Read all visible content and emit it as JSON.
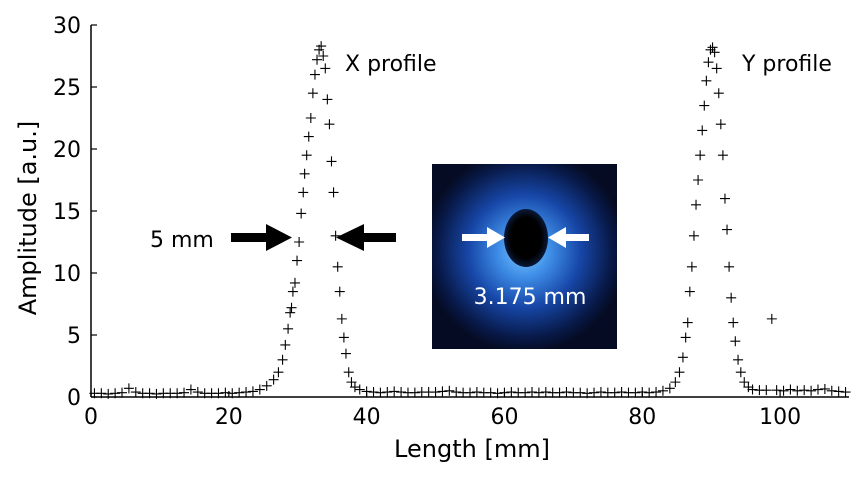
{
  "chart_data": {
    "type": "scatter",
    "xlabel": "Length [mm]",
    "ylabel": "Amplitude [a.u.]",
    "xlim": [
      0,
      110
    ],
    "ylim": [
      0,
      30
    ],
    "xticks": [
      0,
      20,
      40,
      60,
      80,
      100
    ],
    "yticks": [
      0,
      5,
      10,
      15,
      20,
      25,
      30
    ],
    "grid": false,
    "marker": "plus",
    "annotations": {
      "x_profile": "X profile",
      "y_profile": "Y profile",
      "width_label": "5 mm",
      "inset_label": "3.175 mm"
    },
    "series": [
      {
        "points": [
          [
            0.5,
            0.3
          ],
          [
            1.5,
            0.3
          ],
          [
            2.5,
            0.25
          ],
          [
            3.5,
            0.3
          ],
          [
            4.5,
            0.35
          ],
          [
            5.5,
            0.7
          ],
          [
            6.5,
            0.4
          ],
          [
            7.5,
            0.3
          ],
          [
            8.5,
            0.3
          ],
          [
            9.5,
            0.25
          ],
          [
            10.5,
            0.3
          ],
          [
            11.5,
            0.3
          ],
          [
            12.5,
            0.3
          ],
          [
            13.5,
            0.35
          ],
          [
            14.5,
            0.6
          ],
          [
            15.5,
            0.4
          ],
          [
            16.5,
            0.3
          ],
          [
            17.5,
            0.3
          ],
          [
            18.5,
            0.3
          ],
          [
            19.5,
            0.35
          ],
          [
            20.5,
            0.3
          ],
          [
            21.5,
            0.35
          ],
          [
            22.5,
            0.4
          ],
          [
            23.5,
            0.45
          ],
          [
            24.5,
            0.6
          ],
          [
            25.5,
            0.9
          ],
          [
            26.5,
            1.4
          ],
          [
            27.2,
            2.0
          ],
          [
            27.8,
            3.0
          ],
          [
            28.2,
            4.2
          ],
          [
            28.6,
            5.5
          ],
          [
            28.9,
            6.8
          ],
          [
            29.1,
            7.2
          ],
          [
            29.3,
            8.5
          ],
          [
            29.6,
            9.2
          ],
          [
            29.9,
            11.0
          ],
          [
            30.2,
            12.5
          ],
          [
            30.5,
            14.8
          ],
          [
            30.8,
            16.5
          ],
          [
            31.0,
            18.0
          ],
          [
            31.3,
            19.5
          ],
          [
            31.6,
            21.0
          ],
          [
            31.9,
            22.5
          ],
          [
            32.2,
            24.5
          ],
          [
            32.5,
            26.0
          ],
          [
            32.8,
            27.2
          ],
          [
            33.1,
            28.0
          ],
          [
            33.4,
            28.3
          ],
          [
            33.7,
            27.5
          ],
          [
            34.0,
            26.5
          ],
          [
            34.3,
            24.0
          ],
          [
            34.6,
            22.0
          ],
          [
            34.9,
            19.0
          ],
          [
            35.2,
            16.5
          ],
          [
            35.5,
            13.0
          ],
          [
            35.8,
            10.5
          ],
          [
            36.1,
            8.5
          ],
          [
            36.4,
            6.3
          ],
          [
            36.7,
            4.8
          ],
          [
            37.0,
            3.5
          ],
          [
            37.4,
            2.0
          ],
          [
            37.8,
            1.2
          ],
          [
            38.3,
            0.8
          ],
          [
            39,
            0.6
          ],
          [
            40,
            0.45
          ],
          [
            41,
            0.4
          ],
          [
            42,
            0.35
          ],
          [
            43,
            0.4
          ],
          [
            44,
            0.45
          ],
          [
            45,
            0.4
          ],
          [
            46,
            0.35
          ],
          [
            47,
            0.35
          ],
          [
            48,
            0.4
          ],
          [
            49,
            0.4
          ],
          [
            50,
            0.4
          ],
          [
            51,
            0.45
          ],
          [
            52,
            0.5
          ],
          [
            53,
            0.4
          ],
          [
            54,
            0.35
          ],
          [
            55,
            0.35
          ],
          [
            56,
            0.4
          ],
          [
            57,
            0.35
          ],
          [
            58,
            0.35
          ],
          [
            59,
            0.3
          ],
          [
            60,
            0.35
          ],
          [
            61,
            0.4
          ],
          [
            62,
            0.35
          ],
          [
            63,
            0.35
          ],
          [
            64,
            0.4
          ],
          [
            65,
            0.35
          ],
          [
            66,
            0.4
          ],
          [
            67,
            0.35
          ],
          [
            68,
            0.35
          ],
          [
            69,
            0.4
          ],
          [
            70,
            0.35
          ],
          [
            71,
            0.35
          ],
          [
            72,
            0.3
          ],
          [
            73,
            0.35
          ],
          [
            74,
            0.4
          ],
          [
            75,
            0.35
          ],
          [
            76,
            0.35
          ],
          [
            77,
            0.4
          ],
          [
            78,
            0.35
          ],
          [
            79,
            0.35
          ],
          [
            80,
            0.4
          ],
          [
            81,
            0.35
          ],
          [
            82,
            0.4
          ],
          [
            83,
            0.5
          ],
          [
            84,
            0.7
          ],
          [
            84.8,
            1.2
          ],
          [
            85.4,
            2.0
          ],
          [
            85.9,
            3.2
          ],
          [
            86.3,
            4.8
          ],
          [
            86.6,
            6.0
          ],
          [
            86.9,
            8.5
          ],
          [
            87.2,
            10.5
          ],
          [
            87.5,
            13.0
          ],
          [
            87.8,
            15.5
          ],
          [
            88.1,
            17.5
          ],
          [
            88.4,
            19.5
          ],
          [
            88.7,
            21.5
          ],
          [
            89.0,
            23.5
          ],
          [
            89.3,
            25.5
          ],
          [
            89.6,
            27.0
          ],
          [
            89.9,
            28.0
          ],
          [
            90.2,
            28.2
          ],
          [
            90.5,
            27.8
          ],
          [
            90.8,
            26.5
          ],
          [
            91.1,
            24.5
          ],
          [
            91.4,
            22.0
          ],
          [
            91.7,
            19.5
          ],
          [
            92.0,
            16.0
          ],
          [
            92.3,
            13.5
          ],
          [
            92.6,
            10.5
          ],
          [
            92.9,
            8.0
          ],
          [
            93.2,
            6.0
          ],
          [
            93.5,
            4.5
          ],
          [
            93.9,
            3.0
          ],
          [
            94.3,
            2.0
          ],
          [
            94.8,
            1.2
          ],
          [
            95.4,
            0.8
          ],
          [
            96,
            0.6
          ],
          [
            97,
            0.55
          ],
          [
            98,
            0.55
          ],
          [
            98.8,
            6.3
          ],
          [
            99.5,
            0.55
          ],
          [
            100.5,
            0.5
          ],
          [
            101.5,
            0.6
          ],
          [
            102.5,
            0.5
          ],
          [
            103.5,
            0.55
          ],
          [
            104.5,
            0.5
          ],
          [
            105.5,
            0.6
          ],
          [
            106.5,
            0.65
          ],
          [
            107.5,
            0.5
          ],
          [
            108.5,
            0.45
          ],
          [
            109.5,
            0.4
          ]
        ]
      }
    ]
  }
}
